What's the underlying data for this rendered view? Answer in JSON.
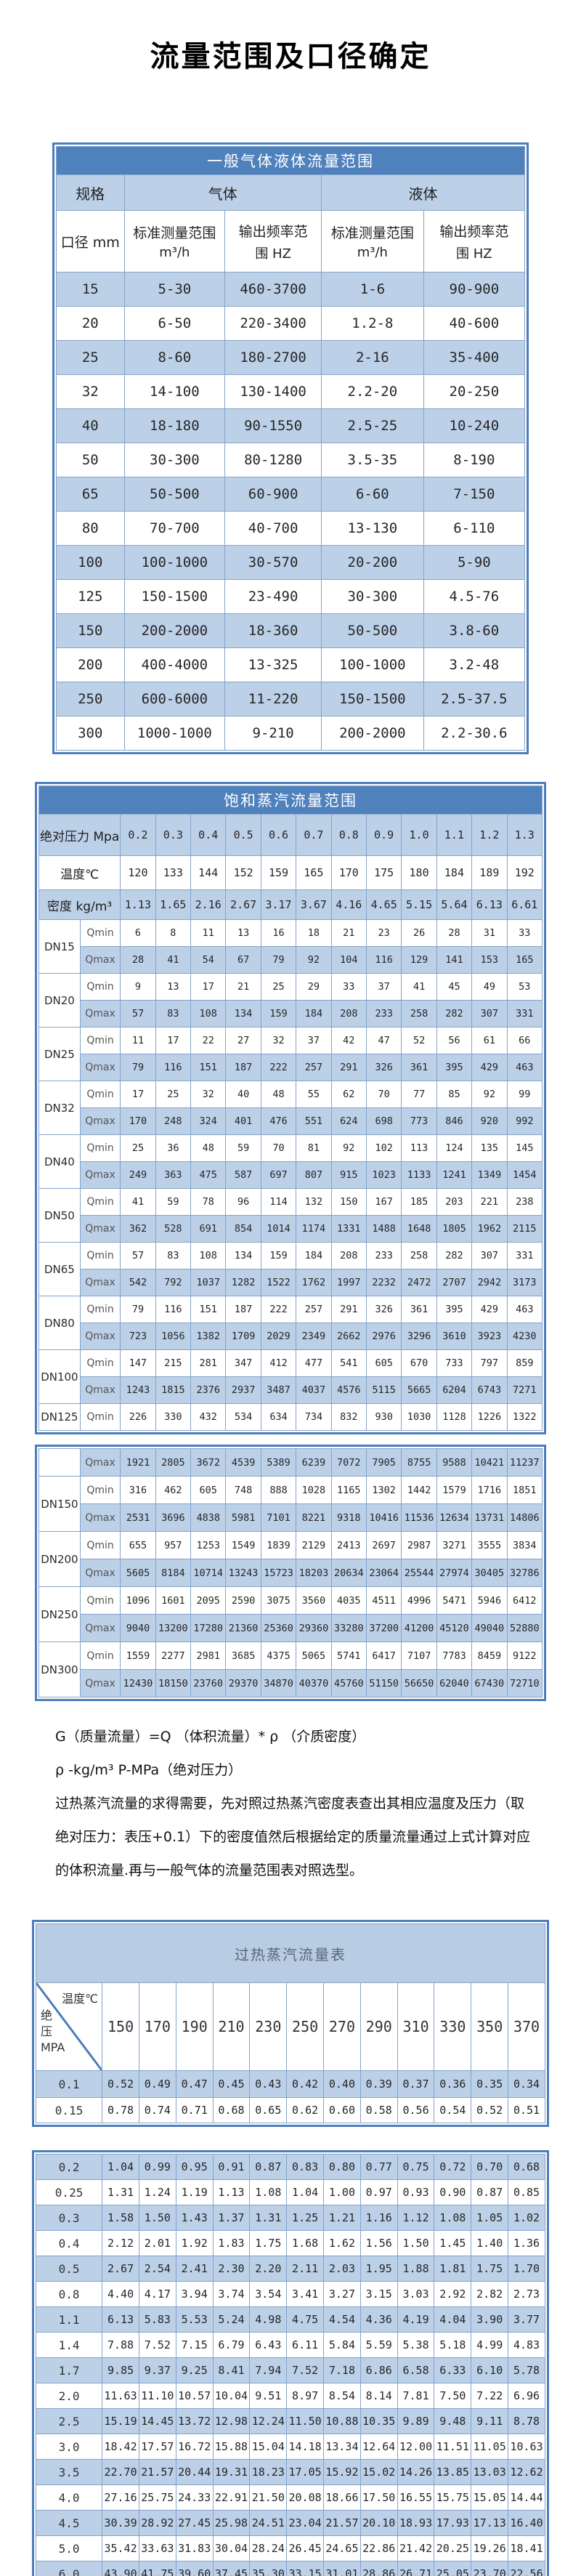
{
  "page_title": "流量范围及口径确定",
  "colors": {
    "header_blue": "#4f81bd",
    "band_blue": "#bcd0e8",
    "light_title_blue": "#b8cce4",
    "border_blue": "#85a3c9",
    "frame_blue": "#4d7ebc"
  },
  "table1": {
    "title": "一般气体液体流量范围",
    "headers": {
      "spec": "规格",
      "gas": "气体",
      "liquid": "液体",
      "diameter": "口径 mm",
      "std_range_line1": "标准测量范围",
      "std_range_line2": "m³/h",
      "freq_line1": "输出频率范",
      "freq_line2": "围 HZ"
    },
    "rows": [
      [
        "15",
        "5-30",
        "460-3700",
        "1-6",
        "90-900"
      ],
      [
        "20",
        "6-50",
        "220-3400",
        "1.2-8",
        "40-600"
      ],
      [
        "25",
        "8-60",
        "180-2700",
        "2-16",
        "35-400"
      ],
      [
        "32",
        "14-100",
        "130-1400",
        "2.2-20",
        "20-250"
      ],
      [
        "40",
        "18-180",
        "90-1550",
        "2.5-25",
        "10-240"
      ],
      [
        "50",
        "30-300",
        "80-1280",
        "3.5-35",
        "8-190"
      ],
      [
        "65",
        "50-500",
        "60-900",
        "6-60",
        "7-150"
      ],
      [
        "80",
        "70-700",
        "40-700",
        "13-130",
        "6-110"
      ],
      [
        "100",
        "100-1000",
        "30-570",
        "20-200",
        "5-90"
      ],
      [
        "125",
        "150-1500",
        "23-490",
        "30-300",
        "4.5-76"
      ],
      [
        "150",
        "200-2000",
        "18-360",
        "50-500",
        "3.8-60"
      ],
      [
        "200",
        "400-4000",
        "13-325",
        "100-1000",
        "3.2-48"
      ],
      [
        "250",
        "600-6000",
        "11-220",
        "150-1500",
        "2.5-37.5"
      ],
      [
        "300",
        "1000-1000",
        "9-210",
        "200-2000",
        "2.2-30.6"
      ]
    ]
  },
  "table2": {
    "title": "饱和蒸汽流量范围",
    "pressure_label": "绝对压力 Mpa",
    "temp_label": "温度℃",
    "density_label": "密度 kg/m³",
    "qmin_label": "Qmin",
    "qmax_label": "Qmax",
    "pressures": [
      "0.2",
      "0.3",
      "0.4",
      "0.5",
      "0.6",
      "0.7",
      "0.8",
      "0.9",
      "1.0",
      "1.1",
      "1.2",
      "1.3"
    ],
    "temperatures": [
      "120",
      "133",
      "144",
      "152",
      "159",
      "165",
      "170",
      "175",
      "180",
      "184",
      "189",
      "192"
    ],
    "densities": [
      "1.13",
      "1.65",
      "2.16",
      "2.67",
      "3.17",
      "3.67",
      "4.16",
      "4.65",
      "5.15",
      "5.64",
      "6.13",
      "6.61"
    ],
    "dn_rows": [
      {
        "dn": "DN15",
        "qmin": [
          "6",
          "8",
          "11",
          "13",
          "16",
          "18",
          "21",
          "23",
          "26",
          "28",
          "31",
          "33"
        ],
        "qmax": [
          "28",
          "41",
          "54",
          "67",
          "79",
          "92",
          "104",
          "116",
          "129",
          "141",
          "153",
          "165"
        ]
      },
      {
        "dn": "DN20",
        "qmin": [
          "9",
          "13",
          "17",
          "21",
          "25",
          "29",
          "33",
          "37",
          "41",
          "45",
          "49",
          "53"
        ],
        "qmax": [
          "57",
          "83",
          "108",
          "134",
          "159",
          "184",
          "208",
          "233",
          "258",
          "282",
          "307",
          "331"
        ]
      },
      {
        "dn": "DN25",
        "qmin": [
          "11",
          "17",
          "22",
          "27",
          "32",
          "37",
          "42",
          "47",
          "52",
          "56",
          "61",
          "66"
        ],
        "qmax": [
          "79",
          "116",
          "151",
          "187",
          "222",
          "257",
          "291",
          "326",
          "361",
          "395",
          "429",
          "463"
        ]
      },
      {
        "dn": "DN32",
        "qmin": [
          "17",
          "25",
          "32",
          "40",
          "48",
          "55",
          "62",
          "70",
          "77",
          "85",
          "92",
          "99"
        ],
        "qmax": [
          "170",
          "248",
          "324",
          "401",
          "476",
          "551",
          "624",
          "698",
          "773",
          "846",
          "920",
          "992"
        ]
      },
      {
        "dn": "DN40",
        "qmin": [
          "25",
          "36",
          "48",
          "59",
          "70",
          "81",
          "92",
          "102",
          "113",
          "124",
          "135",
          "145"
        ],
        "qmax": [
          "249",
          "363",
          "475",
          "587",
          "697",
          "807",
          "915",
          "1023",
          "1133",
          "1241",
          "1349",
          "1454"
        ]
      },
      {
        "dn": "DN50",
        "qmin": [
          "41",
          "59",
          "78",
          "96",
          "114",
          "132",
          "150",
          "167",
          "185",
          "203",
          "221",
          "238"
        ],
        "qmax": [
          "362",
          "528",
          "691",
          "854",
          "1014",
          "1174",
          "1331",
          "1488",
          "1648",
          "1805",
          "1962",
          "2115"
        ]
      },
      {
        "dn": "DN65",
        "qmin": [
          "57",
          "83",
          "108",
          "134",
          "159",
          "184",
          "208",
          "233",
          "258",
          "282",
          "307",
          "331"
        ],
        "qmax": [
          "542",
          "792",
          "1037",
          "1282",
          "1522",
          "1762",
          "1997",
          "2232",
          "2472",
          "2707",
          "2942",
          "3173"
        ]
      },
      {
        "dn": "DN80",
        "qmin": [
          "79",
          "116",
          "151",
          "187",
          "222",
          "257",
          "291",
          "326",
          "361",
          "395",
          "429",
          "463"
        ],
        "qmax": [
          "723",
          "1056",
          "1382",
          "1709",
          "2029",
          "2349",
          "2662",
          "2976",
          "3296",
          "3610",
          "3923",
          "4230"
        ]
      },
      {
        "dn": "DN100",
        "qmin": [
          "147",
          "215",
          "281",
          "347",
          "412",
          "477",
          "541",
          "605",
          "670",
          "733",
          "797",
          "859"
        ],
        "qmax": [
          "1243",
          "1815",
          "2376",
          "2937",
          "3487",
          "4037",
          "4576",
          "5115",
          "5665",
          "6204",
          "6743",
          "7271"
        ]
      },
      {
        "dn": "DN125",
        "qmin": [
          "226",
          "330",
          "432",
          "534",
          "634",
          "734",
          "832",
          "930",
          "1030",
          "1128",
          "1226",
          "1322"
        ],
        "qmax": [
          "1921",
          "2805",
          "3672",
          "4539",
          "5389",
          "6239",
          "7072",
          "7905",
          "8755",
          "9588",
          "10421",
          "11237"
        ]
      },
      {
        "dn": "DN150",
        "qmin": [
          "316",
          "462",
          "605",
          "748",
          "888",
          "1028",
          "1165",
          "1302",
          "1442",
          "1579",
          "1716",
          "1851"
        ],
        "qmax": [
          "2531",
          "3696",
          "4838",
          "5981",
          "7101",
          "8221",
          "9318",
          "10416",
          "11536",
          "12634",
          "13731",
          "14806"
        ]
      },
      {
        "dn": "DN200",
        "qmin": [
          "655",
          "957",
          "1253",
          "1549",
          "1839",
          "2129",
          "2413",
          "2697",
          "2987",
          "3271",
          "3555",
          "3834"
        ],
        "qmax": [
          "5605",
          "8184",
          "10714",
          "13243",
          "15723",
          "18203",
          "20634",
          "23064",
          "25544",
          "27974",
          "30405",
          "32786"
        ]
      },
      {
        "dn": "DN250",
        "qmin": [
          "1096",
          "1601",
          "2095",
          "2590",
          "3075",
          "3560",
          "4035",
          "4511",
          "4996",
          "5471",
          "5946",
          "6412"
        ],
        "qmax": [
          "9040",
          "13200",
          "17280",
          "21360",
          "25360",
          "29360",
          "33280",
          "37200",
          "41200",
          "45120",
          "49040",
          "52880"
        ]
      },
      {
        "dn": "DN300",
        "qmin": [
          "1559",
          "2277",
          "2981",
          "3685",
          "4375",
          "5065",
          "5741",
          "6417",
          "7107",
          "7783",
          "8459",
          "9122"
        ],
        "qmax": [
          "12430",
          "18150",
          "23760",
          "29370",
          "34870",
          "40370",
          "45760",
          "51150",
          "56650",
          "62040",
          "67430",
          "72710"
        ]
      }
    ]
  },
  "notes": {
    "formula": "G（质量流量）=Q （体积流量）* ρ （介质密度）",
    "symbols": "ρ -kg/m³ P-MPa（绝对压力）",
    "paragraph": "过热蒸汽流量的求得需要，先对照过热蒸汽密度表查出其相应温度及压力（取绝对压力：表压+0.1）下的密度值然后根据给定的质量流量通过上式计算对应的体积流量.再与一般气体的流量范围表对照选型。"
  },
  "table3": {
    "title": "过热蒸汽流量表",
    "corner_top": "温度℃",
    "corner_bottom": "绝\n压\nMPA",
    "temps": [
      "150",
      "170",
      "190",
      "210",
      "230",
      "250",
      "270",
      "290",
      "310",
      "330",
      "350",
      "370"
    ],
    "rows": [
      {
        "p": "0.1",
        "v": [
          "0.52",
          "0.49",
          "0.47",
          "0.45",
          "0.43",
          "0.42",
          "0.40",
          "0.39",
          "0.37",
          "0.36",
          "0.35",
          "0.34"
        ]
      },
      {
        "p": "0.15",
        "v": [
          "0.78",
          "0.74",
          "0.71",
          "0.68",
          "0.65",
          "0.62",
          "0.60",
          "0.58",
          "0.56",
          "0.54",
          "0.52",
          "0.51"
        ]
      },
      {
        "p": "0.2",
        "v": [
          "1.04",
          "0.99",
          "0.95",
          "0.91",
          "0.87",
          "0.83",
          "0.80",
          "0.77",
          "0.75",
          "0.72",
          "0.70",
          "0.68"
        ]
      },
      {
        "p": "0.25",
        "v": [
          "1.31",
          "1.24",
          "1.19",
          "1.13",
          "1.08",
          "1.04",
          "1.00",
          "0.97",
          "0.93",
          "0.90",
          "0.87",
          "0.85"
        ]
      },
      {
        "p": "0.3",
        "v": [
          "1.58",
          "1.50",
          "1.43",
          "1.37",
          "1.31",
          "1.25",
          "1.21",
          "1.16",
          "1.12",
          "1.08",
          "1.05",
          "1.02"
        ]
      },
      {
        "p": "0.4",
        "v": [
          "2.12",
          "2.01",
          "1.92",
          "1.83",
          "1.75",
          "1.68",
          "1.62",
          "1.56",
          "1.50",
          "1.45",
          "1.40",
          "1.36"
        ]
      },
      {
        "p": "0.5",
        "v": [
          "2.67",
          "2.54",
          "2.41",
          "2.30",
          "2.20",
          "2.11",
          "2.03",
          "1.95",
          "1.88",
          "1.81",
          "1.75",
          "1.70"
        ]
      },
      {
        "p": "0.8",
        "v": [
          "4.40",
          "4.17",
          "3.94",
          "3.74",
          "3.54",
          "3.41",
          "3.27",
          "3.15",
          "3.03",
          "2.92",
          "2.82",
          "2.73"
        ]
      },
      {
        "p": "1.1",
        "v": [
          "6.13",
          "5.83",
          "5.53",
          "5.24",
          "4.98",
          "4.75",
          "4.54",
          "4.36",
          "4.19",
          "4.04",
          "3.90",
          "3.77"
        ]
      },
      {
        "p": "1.4",
        "v": [
          "7.88",
          "7.52",
          "7.15",
          "6.79",
          "6.43",
          "6.11",
          "5.84",
          "5.59",
          "5.38",
          "5.18",
          "4.99",
          "4.83"
        ]
      },
      {
        "p": "1.7",
        "v": [
          "9.85",
          "9.37",
          "9.25",
          "8.41",
          "7.94",
          "7.52",
          "7.18",
          "6.86",
          "6.58",
          "6.33",
          "6.10",
          "5.78"
        ]
      },
      {
        "p": "2.0",
        "v": [
          "11.63",
          "11.10",
          "10.57",
          "10.04",
          "9.51",
          "8.97",
          "8.54",
          "8.14",
          "7.81",
          "7.50",
          "7.22",
          "6.96"
        ]
      },
      {
        "p": "2.5",
        "v": [
          "15.19",
          "14.45",
          "13.72",
          "12.98",
          "12.24",
          "11.50",
          "10.88",
          "10.35",
          "9.89",
          "9.48",
          "9.11",
          "8.78"
        ]
      },
      {
        "p": "3.0",
        "v": [
          "18.42",
          "17.57",
          "16.72",
          "15.88",
          "15.04",
          "14.18",
          "13.34",
          "12.64",
          "12.00",
          "11.51",
          "11.05",
          "10.63"
        ]
      },
      {
        "p": "3.5",
        "v": [
          "22.70",
          "21.57",
          "20.44",
          "19.31",
          "18.23",
          "17.05",
          "15.92",
          "15.02",
          "14.26",
          "13.85",
          "13.03",
          "12.62"
        ]
      },
      {
        "p": "4.0",
        "v": [
          "27.16",
          "25.75",
          "24.33",
          "22.91",
          "21.50",
          "20.08",
          "18.66",
          "17.50",
          "16.55",
          "15.75",
          "15.05",
          "14.44"
        ]
      },
      {
        "p": "4.5",
        "v": [
          "30.39",
          "28.92",
          "27.45",
          "25.98",
          "24.51",
          "23.04",
          "21.57",
          "20.10",
          "18.93",
          "17.93",
          "17.13",
          "16.40"
        ]
      },
      {
        "p": "5.0",
        "v": [
          "35.42",
          "33.63",
          "31.83",
          "30.04",
          "28.24",
          "26.45",
          "24.65",
          "22.86",
          "21.42",
          "20.25",
          "19.26",
          "18.41"
        ]
      },
      {
        "p": "6.0",
        "v": [
          "43.90",
          "41.75",
          "39.60",
          "37.45",
          "35.30",
          "33.15",
          "31.01",
          "28.86",
          "26.71",
          "25.05",
          "23.70",
          "22.56"
        ]
      }
    ]
  }
}
